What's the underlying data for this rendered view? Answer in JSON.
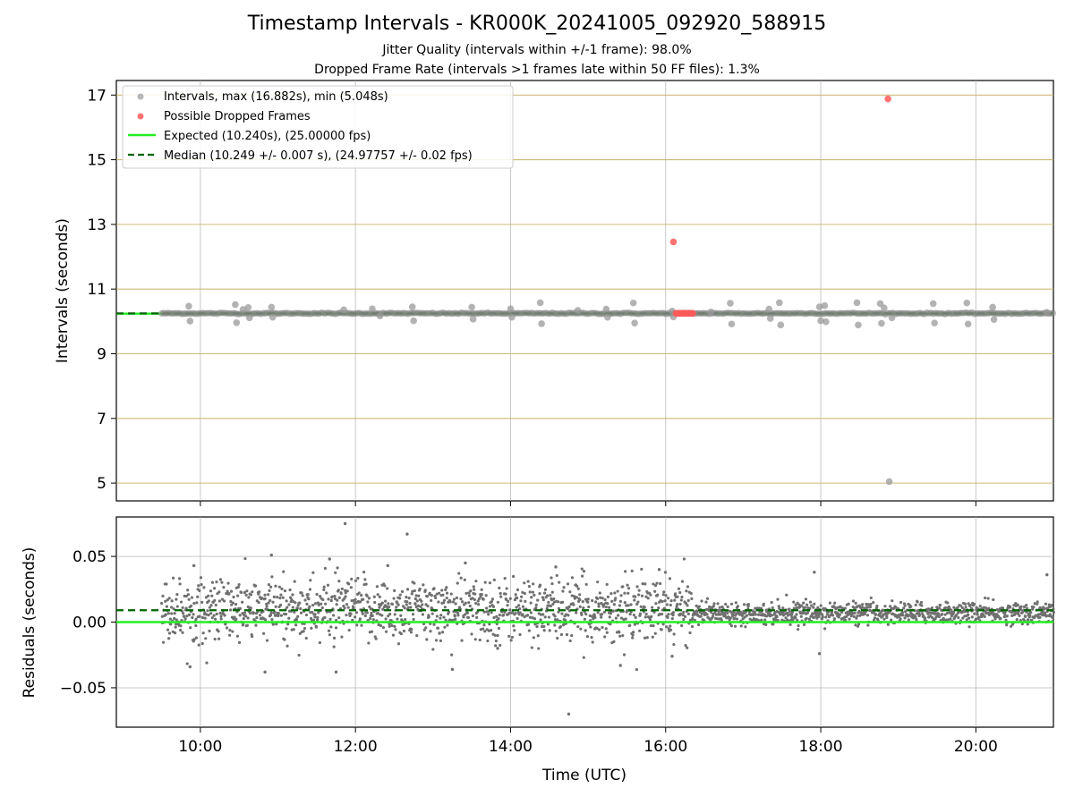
{
  "chart_data": [
    {
      "type": "scatter",
      "title": "Timestamp Intervals - KR000K_20241005_092920_588915",
      "subtitle": [
        "Jitter Quality (intervals within +/-1 frame): 98.0%",
        "Dropped Frame Rate (intervals >1 frames late within 50 FF files): 1.3%"
      ],
      "xlabel": "",
      "ylabel": "Intervals (seconds)",
      "xlim": [
        "08:55",
        "21:00"
      ],
      "ylim": [
        4.45,
        17.45
      ],
      "yticks": [
        5,
        7,
        9,
        11,
        13,
        15,
        17
      ],
      "grid": true,
      "legend_position": "upper-left",
      "legend": [
        {
          "label": "Intervals, max (16.882s), min (5.048s)",
          "kind": "marker",
          "color": "#999999"
        },
        {
          "label": "Possible Dropped Frames",
          "kind": "marker",
          "color": "#ff5a5a"
        },
        {
          "label": "Expected (10.240s), (25.00000 fps)",
          "kind": "line",
          "color": "#22ee22"
        },
        {
          "label": "Median (10.249 +/- 0.007 s), (24.97757 +/- 0.02 fps)",
          "kind": "dashed",
          "color": "#006400"
        }
      ],
      "reference_lines": {
        "expected": 10.24,
        "median": 10.249
      },
      "series": [
        {
          "name": "Intervals, max (16.882s), min (5.048s)",
          "color": "#999999",
          "points": [
            [
              "09:51",
              10.47
            ],
            [
              "09:52",
              10.01
            ],
            [
              "10:27",
              10.52
            ],
            [
              "10:28",
              9.96
            ],
            [
              "10:33",
              10.37
            ],
            [
              "10:37",
              10.43
            ],
            [
              "10:38",
              10.11
            ],
            [
              "10:55",
              10.44
            ],
            [
              "10:56",
              10.13
            ],
            [
              "11:51",
              10.36
            ],
            [
              "12:13",
              10.39
            ],
            [
              "12:19",
              10.17
            ],
            [
              "12:44",
              10.45
            ],
            [
              "12:45",
              10.02
            ],
            [
              "13:30",
              10.44
            ],
            [
              "13:31",
              10.07
            ],
            [
              "14:00",
              10.39
            ],
            [
              "14:01",
              10.13
            ],
            [
              "14:23",
              10.58
            ],
            [
              "14:24",
              9.93
            ],
            [
              "14:52",
              10.34
            ],
            [
              "15:14",
              10.38
            ],
            [
              "15:15",
              10.13
            ],
            [
              "15:35",
              10.57
            ],
            [
              "15:36",
              9.95
            ],
            [
              "16:05",
              10.32
            ],
            [
              "16:06",
              10.14
            ],
            [
              "16:35",
              10.29
            ],
            [
              "16:50",
              10.56
            ],
            [
              "16:51",
              9.92
            ],
            [
              "17:20",
              10.38
            ],
            [
              "17:21",
              10.09
            ],
            [
              "17:28",
              10.58
            ],
            [
              "17:29",
              9.89
            ],
            [
              "17:59",
              10.45
            ],
            [
              "18:00",
              10.02
            ],
            [
              "18:03",
              10.49
            ],
            [
              "18:04",
              9.99
            ],
            [
              "18:28",
              10.58
            ],
            [
              "18:29",
              9.89
            ],
            [
              "18:46",
              10.55
            ],
            [
              "18:47",
              9.94
            ],
            [
              "18:49",
              10.42
            ],
            [
              "18:53",
              5.048
            ],
            [
              "18:55",
              10.11
            ],
            [
              "19:27",
              10.55
            ],
            [
              "19:28",
              9.95
            ],
            [
              "19:53",
              10.57
            ],
            [
              "19:54",
              9.92
            ],
            [
              "20:13",
              10.44
            ],
            [
              "20:14",
              10.06
            ],
            [
              "20:55",
              10.28
            ]
          ]
        },
        {
          "name": "Possible Dropped Frames",
          "color": "#ff5a5a",
          "points": [
            [
              "16:06",
              12.46
            ],
            [
              "18:52",
              16.882
            ],
            [
              "16:08",
              10.25
            ],
            [
              "16:09",
              10.25
            ],
            [
              "16:10",
              10.25
            ],
            [
              "16:11",
              10.25
            ],
            [
              "16:12",
              10.25
            ],
            [
              "16:13",
              10.25
            ],
            [
              "16:14",
              10.25
            ],
            [
              "16:15",
              10.25
            ],
            [
              "16:16",
              10.25
            ],
            [
              "16:17",
              10.25
            ],
            [
              "16:18",
              10.25
            ],
            [
              "16:19",
              10.25
            ],
            [
              "16:20",
              10.25
            ],
            [
              "16:21",
              10.25
            ]
          ]
        }
      ]
    },
    {
      "type": "scatter",
      "title": "",
      "xlabel": "Time (UTC)",
      "ylabel": "Residuals (seconds)",
      "xlim": [
        "08:55",
        "21:00"
      ],
      "ylim": [
        -0.08,
        0.08
      ],
      "xticks": [
        "10:00",
        "12:00",
        "14:00",
        "16:00",
        "18:00",
        "20:00"
      ],
      "ytick_labels": [
        {
          "value": 0.05,
          "label": "0.05"
        },
        {
          "value": 0.0,
          "label": "0.00"
        },
        {
          "value": -0.05,
          "label": "−0.05"
        }
      ],
      "grid": true,
      "reference_lines": {
        "expected": 0.0,
        "median": 0.009
      },
      "residual_profile": [
        {
          "start": "09:30",
          "end": "16:20",
          "center": 0.009,
          "spread": 0.012
        },
        {
          "start": "16:20",
          "end": "21:00",
          "center": 0.007,
          "spread": 0.004
        }
      ],
      "series": [
        {
          "name": "",
          "color": "#707070",
          "points": [
            [
              "11:52",
              0.075
            ],
            [
              "12:40",
              0.067
            ],
            [
              "14:45",
              -0.07
            ],
            [
              "10:55",
              0.051
            ],
            [
              "11:40",
              0.048
            ],
            [
              "11:45",
              -0.038
            ],
            [
              "10:50",
              -0.038
            ],
            [
              "13:15",
              -0.036
            ],
            [
              "09:55",
              0.043
            ],
            [
              "12:25",
              0.043
            ],
            [
              "14:35",
              0.042
            ],
            [
              "15:25",
              -0.033
            ],
            [
              "17:55",
              0.038
            ],
            [
              "17:59",
              -0.024
            ],
            [
              "20:55",
              0.036
            ],
            [
              "09:52",
              -0.034
            ],
            [
              "13:25",
              0.045
            ],
            [
              "13:50",
              -0.02
            ],
            [
              "15:55",
              0.04
            ],
            [
              "16:05",
              -0.026
            ]
          ]
        }
      ]
    }
  ]
}
